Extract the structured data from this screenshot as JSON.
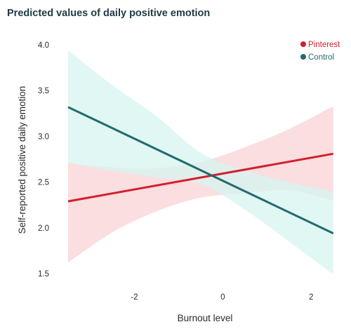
{
  "chart_data": {
    "type": "line",
    "title": "Predicted values of daily positive emotion",
    "xlabel": "Burnout level",
    "ylabel": "Self-reported positive daily emotion",
    "x_ticks": [
      -2,
      0,
      2
    ],
    "y_ticks": [
      1.5,
      2.0,
      2.5,
      3.0,
      3.5,
      4.0
    ],
    "xlim": [
      -3.5,
      2.6
    ],
    "ylim": [
      1.5,
      4.0
    ],
    "grid": false,
    "legend_position": "top-right",
    "series": [
      {
        "name": "Pinterest",
        "color": "#d21f2e",
        "band_color": "#f8d3d6",
        "x": [
          -3.5,
          -2.5,
          -1.5,
          -0.5,
          0.5,
          1.5,
          2.5
        ],
        "y": [
          2.29,
          2.37,
          2.46,
          2.55,
          2.63,
          2.72,
          2.81
        ],
        "lower": [
          1.62,
          1.95,
          2.18,
          2.33,
          2.38,
          2.41,
          2.3
        ],
        "upper": [
          2.71,
          2.66,
          2.65,
          2.72,
          2.88,
          3.08,
          3.33
        ]
      },
      {
        "name": "Control",
        "color": "#236a70",
        "band_color": "#d6f4ef",
        "x": [
          -3.5,
          -2.5,
          -1.5,
          -0.5,
          0.5,
          1.5,
          2.5
        ],
        "y": [
          3.32,
          3.08,
          2.83,
          2.62,
          2.42,
          2.18,
          1.94
        ],
        "lower": [
          2.71,
          2.62,
          2.55,
          2.48,
          2.2,
          1.85,
          1.49
        ],
        "upper": [
          3.94,
          3.56,
          3.22,
          2.82,
          2.63,
          2.5,
          2.4
        ]
      }
    ]
  }
}
